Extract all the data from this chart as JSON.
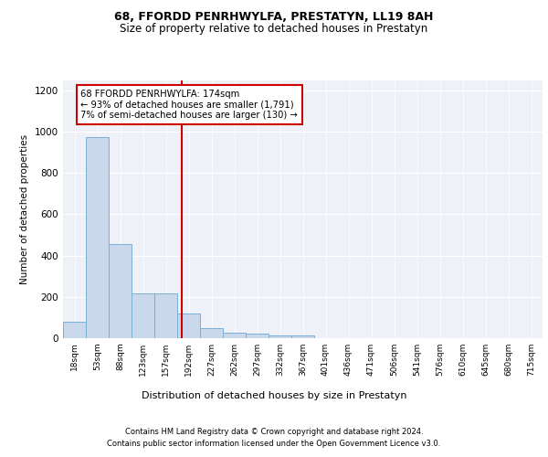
{
  "title1": "68, FFORDD PENRHWYLFA, PRESTATYN, LL19 8AH",
  "title2": "Size of property relative to detached houses in Prestatyn",
  "xlabel": "Distribution of detached houses by size in Prestatyn",
  "ylabel": "Number of detached properties",
  "footer1": "Contains HM Land Registry data © Crown copyright and database right 2024.",
  "footer2": "Contains public sector information licensed under the Open Government Licence v3.0.",
  "annotation_line1": "68 FFORDD PENRHWYLFA: 174sqm",
  "annotation_line2": "← 93% of detached houses are smaller (1,791)",
  "annotation_line3": "7% of semi-detached houses are larger (130) →",
  "bar_labels": [
    "18sqm",
    "53sqm",
    "88sqm",
    "123sqm",
    "157sqm",
    "192sqm",
    "227sqm",
    "262sqm",
    "297sqm",
    "332sqm",
    "367sqm",
    "401sqm",
    "436sqm",
    "471sqm",
    "506sqm",
    "541sqm",
    "576sqm",
    "610sqm",
    "645sqm",
    "680sqm",
    "715sqm"
  ],
  "bar_values": [
    80,
    975,
    455,
    218,
    218,
    120,
    48,
    25,
    22,
    15,
    14,
    0,
    0,
    0,
    0,
    0,
    0,
    0,
    0,
    0,
    0
  ],
  "bar_color": "#c9d9eb",
  "bar_edge_color": "#7bafd4",
  "red_line_x": 4.7,
  "red_line_color": "#cc0000",
  "ylim": [
    0,
    1250
  ],
  "yticks": [
    0,
    200,
    400,
    600,
    800,
    1000,
    1200
  ],
  "bg_color": "#eef2f8",
  "annotation_box_color": "#cc0000",
  "title1_fontsize": 9,
  "title2_fontsize": 8.5,
  "footer_fontsize": 6,
  "bar_fontsize": 6.5,
  "ylabel_fontsize": 7.5,
  "xlabel_fontsize": 8
}
